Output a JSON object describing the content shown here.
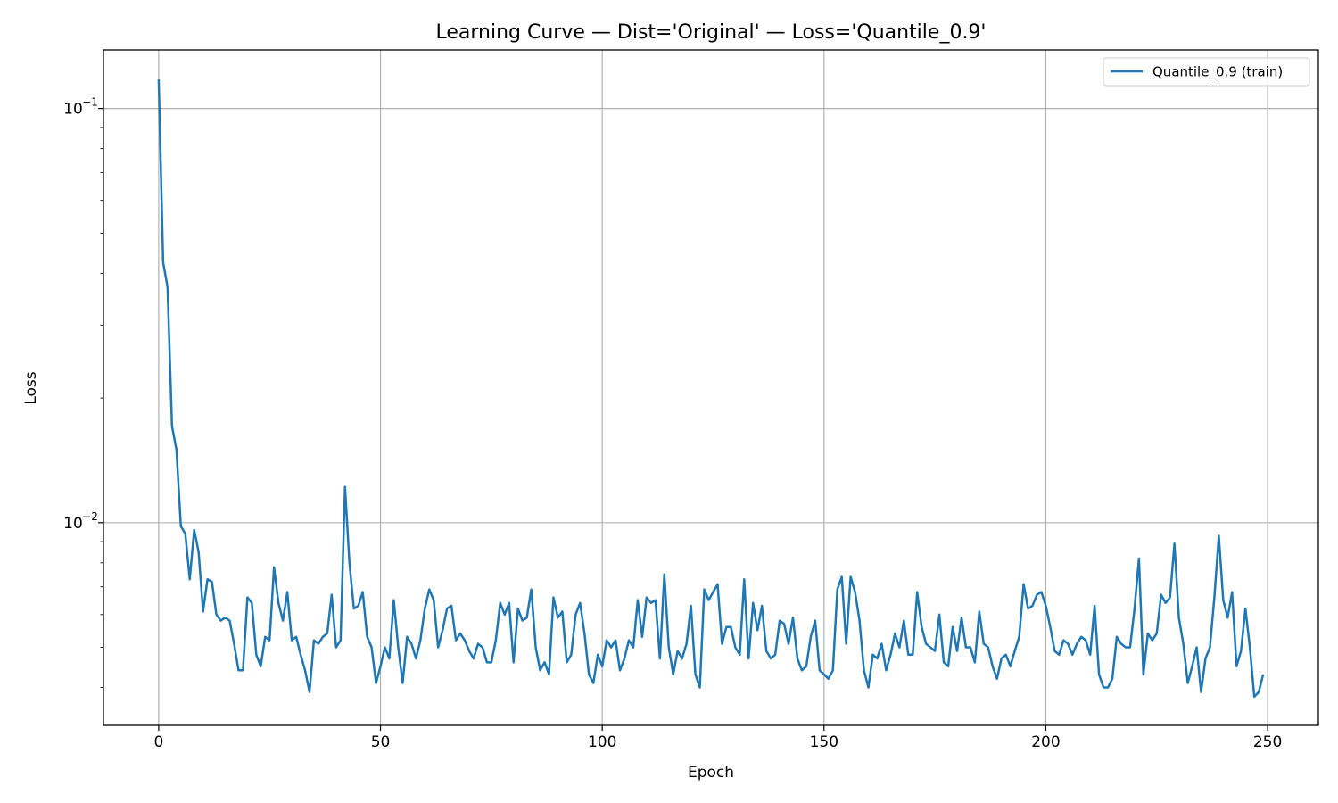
{
  "chart_data": {
    "type": "line",
    "title": "Learning Curve — Dist='Original' — Loss='Quantile_0.9'",
    "xlabel": "Epoch",
    "ylabel": "Loss",
    "xlim": [
      -12.45,
      261.45
    ],
    "ylim": [
      0.00324,
      0.1385
    ],
    "yscale": "log",
    "grid": true,
    "legend": "top-right",
    "xticks": [
      0,
      50,
      100,
      150,
      200,
      250
    ],
    "xtick_labels": [
      "0",
      "50",
      "100",
      "150",
      "200",
      "250"
    ],
    "yticks": [
      0.1,
      0.01
    ],
    "ytick_labels": [
      {
        "base": "10",
        "exp": "−1"
      },
      {
        "base": "10",
        "exp": "−2"
      }
    ],
    "series": [
      {
        "name": "Quantile_0.9 (train)",
        "color": "#1f77b4",
        "x_start": 0,
        "x_step": 1,
        "values": [
          0.1175,
          0.0425,
          0.037,
          0.0171,
          0.015,
          0.0098,
          0.0094,
          0.0073,
          0.0096,
          0.0085,
          0.0061,
          0.0073,
          0.0072,
          0.006,
          0.0058,
          0.0059,
          0.0058,
          0.0051,
          0.0044,
          0.0044,
          0.0066,
          0.0064,
          0.0048,
          0.0045,
          0.0053,
          0.0052,
          0.0078,
          0.0064,
          0.0058,
          0.0068,
          0.0052,
          0.0053,
          0.0048,
          0.0044,
          0.0039,
          0.0052,
          0.0051,
          0.0053,
          0.0054,
          0.0067,
          0.005,
          0.0052,
          0.0122,
          0.008,
          0.0062,
          0.0063,
          0.0068,
          0.0053,
          0.005,
          0.0041,
          0.0045,
          0.005,
          0.0047,
          0.0065,
          0.005,
          0.0041,
          0.0053,
          0.0051,
          0.0047,
          0.0052,
          0.0062,
          0.0069,
          0.0065,
          0.005,
          0.0055,
          0.0062,
          0.0063,
          0.0052,
          0.0054,
          0.0052,
          0.0049,
          0.0047,
          0.0051,
          0.005,
          0.0046,
          0.0046,
          0.0052,
          0.0064,
          0.006,
          0.0064,
          0.0046,
          0.0062,
          0.0058,
          0.0059,
          0.0069,
          0.005,
          0.0044,
          0.0046,
          0.0043,
          0.0066,
          0.0059,
          0.0061,
          0.0046,
          0.0048,
          0.006,
          0.0064,
          0.0054,
          0.0043,
          0.0041,
          0.0048,
          0.0045,
          0.0052,
          0.005,
          0.0052,
          0.0044,
          0.0047,
          0.0052,
          0.005,
          0.0065,
          0.0053,
          0.0066,
          0.0064,
          0.0065,
          0.0047,
          0.0075,
          0.005,
          0.0043,
          0.0049,
          0.0047,
          0.0051,
          0.0063,
          0.0043,
          0.004,
          0.0069,
          0.0065,
          0.0068,
          0.0071,
          0.0051,
          0.0056,
          0.0056,
          0.005,
          0.0048,
          0.0073,
          0.0047,
          0.0064,
          0.0055,
          0.0063,
          0.0049,
          0.0047,
          0.0048,
          0.0058,
          0.0057,
          0.0051,
          0.0059,
          0.0047,
          0.0044,
          0.0045,
          0.0053,
          0.0058,
          0.0044,
          0.0043,
          0.0042,
          0.0044,
          0.0069,
          0.0074,
          0.0051,
          0.0074,
          0.0068,
          0.0058,
          0.0044,
          0.004,
          0.0048,
          0.0047,
          0.0051,
          0.0044,
          0.0048,
          0.0054,
          0.005,
          0.0058,
          0.0048,
          0.0048,
          0.0068,
          0.0056,
          0.0051,
          0.005,
          0.0049,
          0.006,
          0.0046,
          0.0045,
          0.0056,
          0.0049,
          0.0059,
          0.005,
          0.005,
          0.0046,
          0.0061,
          0.0051,
          0.005,
          0.0045,
          0.0042,
          0.0047,
          0.0048,
          0.0045,
          0.0049,
          0.0053,
          0.0071,
          0.0062,
          0.0063,
          0.0067,
          0.0068,
          0.0063,
          0.0056,
          0.0049,
          0.0048,
          0.0052,
          0.0051,
          0.0048,
          0.0051,
          0.0053,
          0.0052,
          0.0048,
          0.0063,
          0.0043,
          0.004,
          0.004,
          0.0042,
          0.0053,
          0.0051,
          0.005,
          0.005,
          0.0062,
          0.0082,
          0.0043,
          0.0054,
          0.0052,
          0.0054,
          0.0067,
          0.0064,
          0.0066,
          0.0089,
          0.0059,
          0.0051,
          0.0041,
          0.0045,
          0.005,
          0.0039,
          0.0047,
          0.005,
          0.0066,
          0.0093,
          0.0065,
          0.0059,
          0.0068,
          0.0045,
          0.0049,
          0.0062,
          0.005,
          0.0038,
          0.0039,
          0.0043
        ]
      }
    ]
  }
}
